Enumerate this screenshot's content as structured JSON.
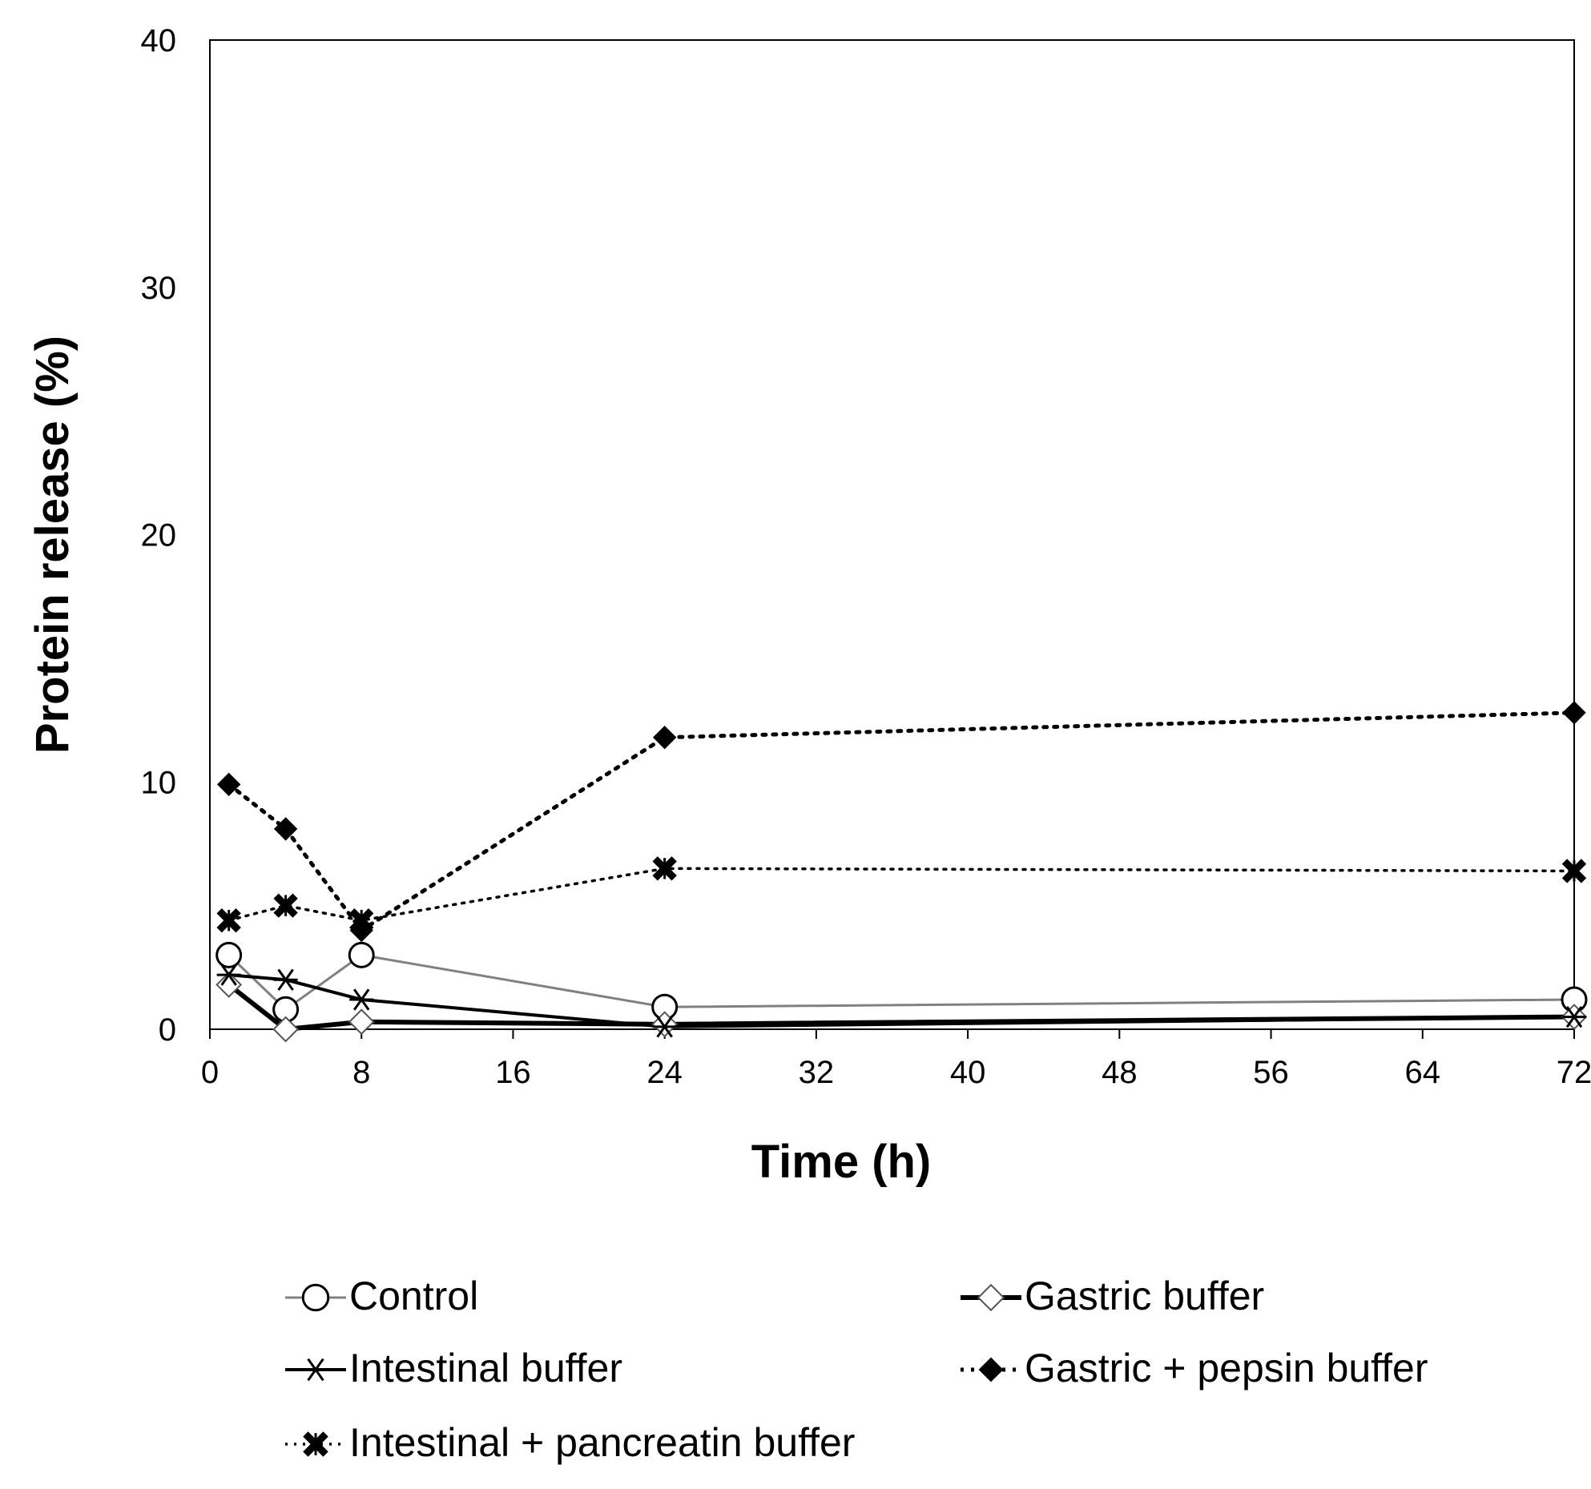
{
  "chart_data": {
    "type": "line",
    "title": "",
    "xlabel": "Time (h)",
    "ylabel": "Protein release (%)",
    "xlim": [
      0,
      72
    ],
    "ylim": [
      0,
      40
    ],
    "xticks": [
      0,
      8,
      16,
      24,
      32,
      40,
      48,
      56,
      64,
      72
    ],
    "yticks": [
      0,
      10,
      20,
      30,
      40
    ],
    "grid": false,
    "legend_position": "bottom",
    "series": [
      {
        "name": "Control",
        "marker": "open-circle",
        "line": "thin-solid-gray",
        "x": [
          1,
          4,
          8,
          24,
          72
        ],
        "y": [
          3.0,
          0.8,
          3.0,
          0.9,
          1.2
        ]
      },
      {
        "name": "Gastric buffer",
        "marker": "open-diamond",
        "line": "thick-solid",
        "x": [
          1,
          4,
          8,
          24,
          72
        ],
        "y": [
          1.8,
          0.0,
          0.3,
          0.2,
          0.5
        ]
      },
      {
        "name": "Intestinal buffer",
        "marker": "asterisk",
        "line": "solid",
        "x": [
          1,
          4,
          8,
          24,
          72
        ],
        "y": [
          2.2,
          2.0,
          1.2,
          0.1,
          0.5
        ]
      },
      {
        "name": "Gastric + pepsin buffer",
        "marker": "filled-diamond",
        "line": "dotted",
        "x": [
          1,
          4,
          8,
          24,
          72
        ],
        "y": [
          9.9,
          8.1,
          4.0,
          11.8,
          12.8
        ]
      },
      {
        "name": "Intestinal + pancreatin buffer",
        "marker": "bold-cross",
        "line": "dotted-thin",
        "x": [
          1,
          4,
          8,
          24,
          72
        ],
        "y": [
          4.4,
          5.0,
          4.4,
          6.5,
          6.4
        ]
      }
    ]
  },
  "colors": {
    "axis": "#000000",
    "control_line": "#808080",
    "series": "#000000"
  }
}
